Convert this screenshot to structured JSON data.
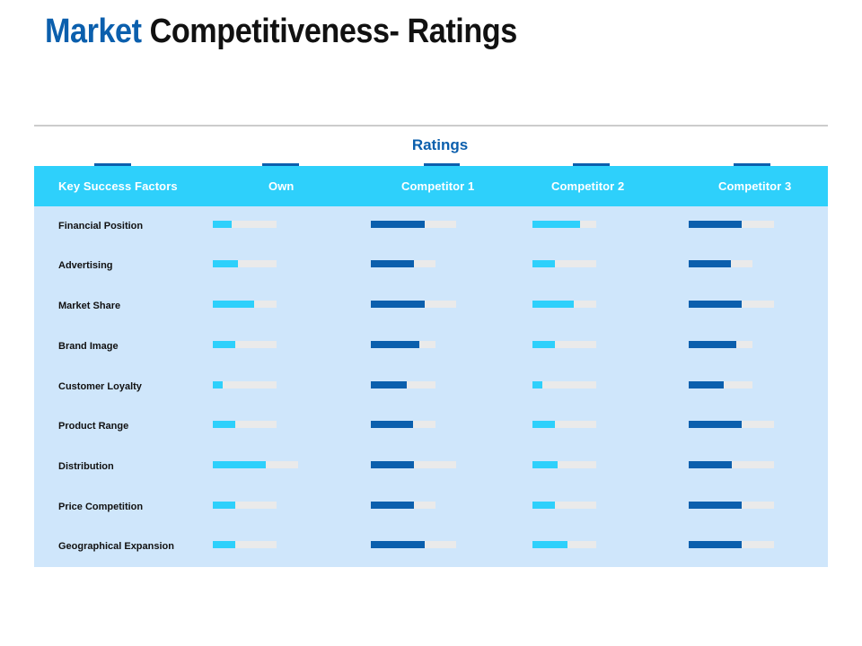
{
  "title": {
    "accent": "Market",
    "rest": "Competitiveness- Ratings"
  },
  "table": {
    "group_label": "Ratings",
    "headers": [
      "Key Success Factors",
      "Own",
      "Competitor 1",
      "Competitor 2",
      "Competitor 3"
    ],
    "colors": {
      "light_bar": "#2ed0fb",
      "dark_bar": "#0b5fad",
      "track": "#eaeaea",
      "header_bg": "#2ed0fb",
      "body_bg": "#cfe6fb"
    },
    "rows": [
      {
        "factor": "Financial Position",
        "ratings": [
          0.3,
          0.63,
          0.75,
          0.62
        ]
      },
      {
        "factor": "Advertising",
        "ratings": [
          0.4,
          0.67,
          0.35,
          0.66
        ]
      },
      {
        "factor": "Market Share",
        "ratings": [
          0.65,
          0.63,
          0.65,
          0.62
        ]
      },
      {
        "factor": "Brand Image",
        "ratings": [
          0.35,
          0.75,
          0.35,
          0.75
        ]
      },
      {
        "factor": "Customer Loyalty",
        "ratings": [
          0.15,
          0.55,
          0.15,
          0.55
        ]
      },
      {
        "factor": "Product Range",
        "ratings": [
          0.35,
          0.65,
          0.35,
          0.62
        ]
      },
      {
        "factor": "Distribution",
        "ratings": [
          0.62,
          0.5,
          0.4,
          0.5
        ]
      },
      {
        "factor": "Price Competition",
        "ratings": [
          0.35,
          0.67,
          0.35,
          0.62
        ]
      },
      {
        "factor": "Geographical Expansion",
        "ratings": [
          0.35,
          0.63,
          0.55,
          0.62
        ]
      }
    ]
  }
}
